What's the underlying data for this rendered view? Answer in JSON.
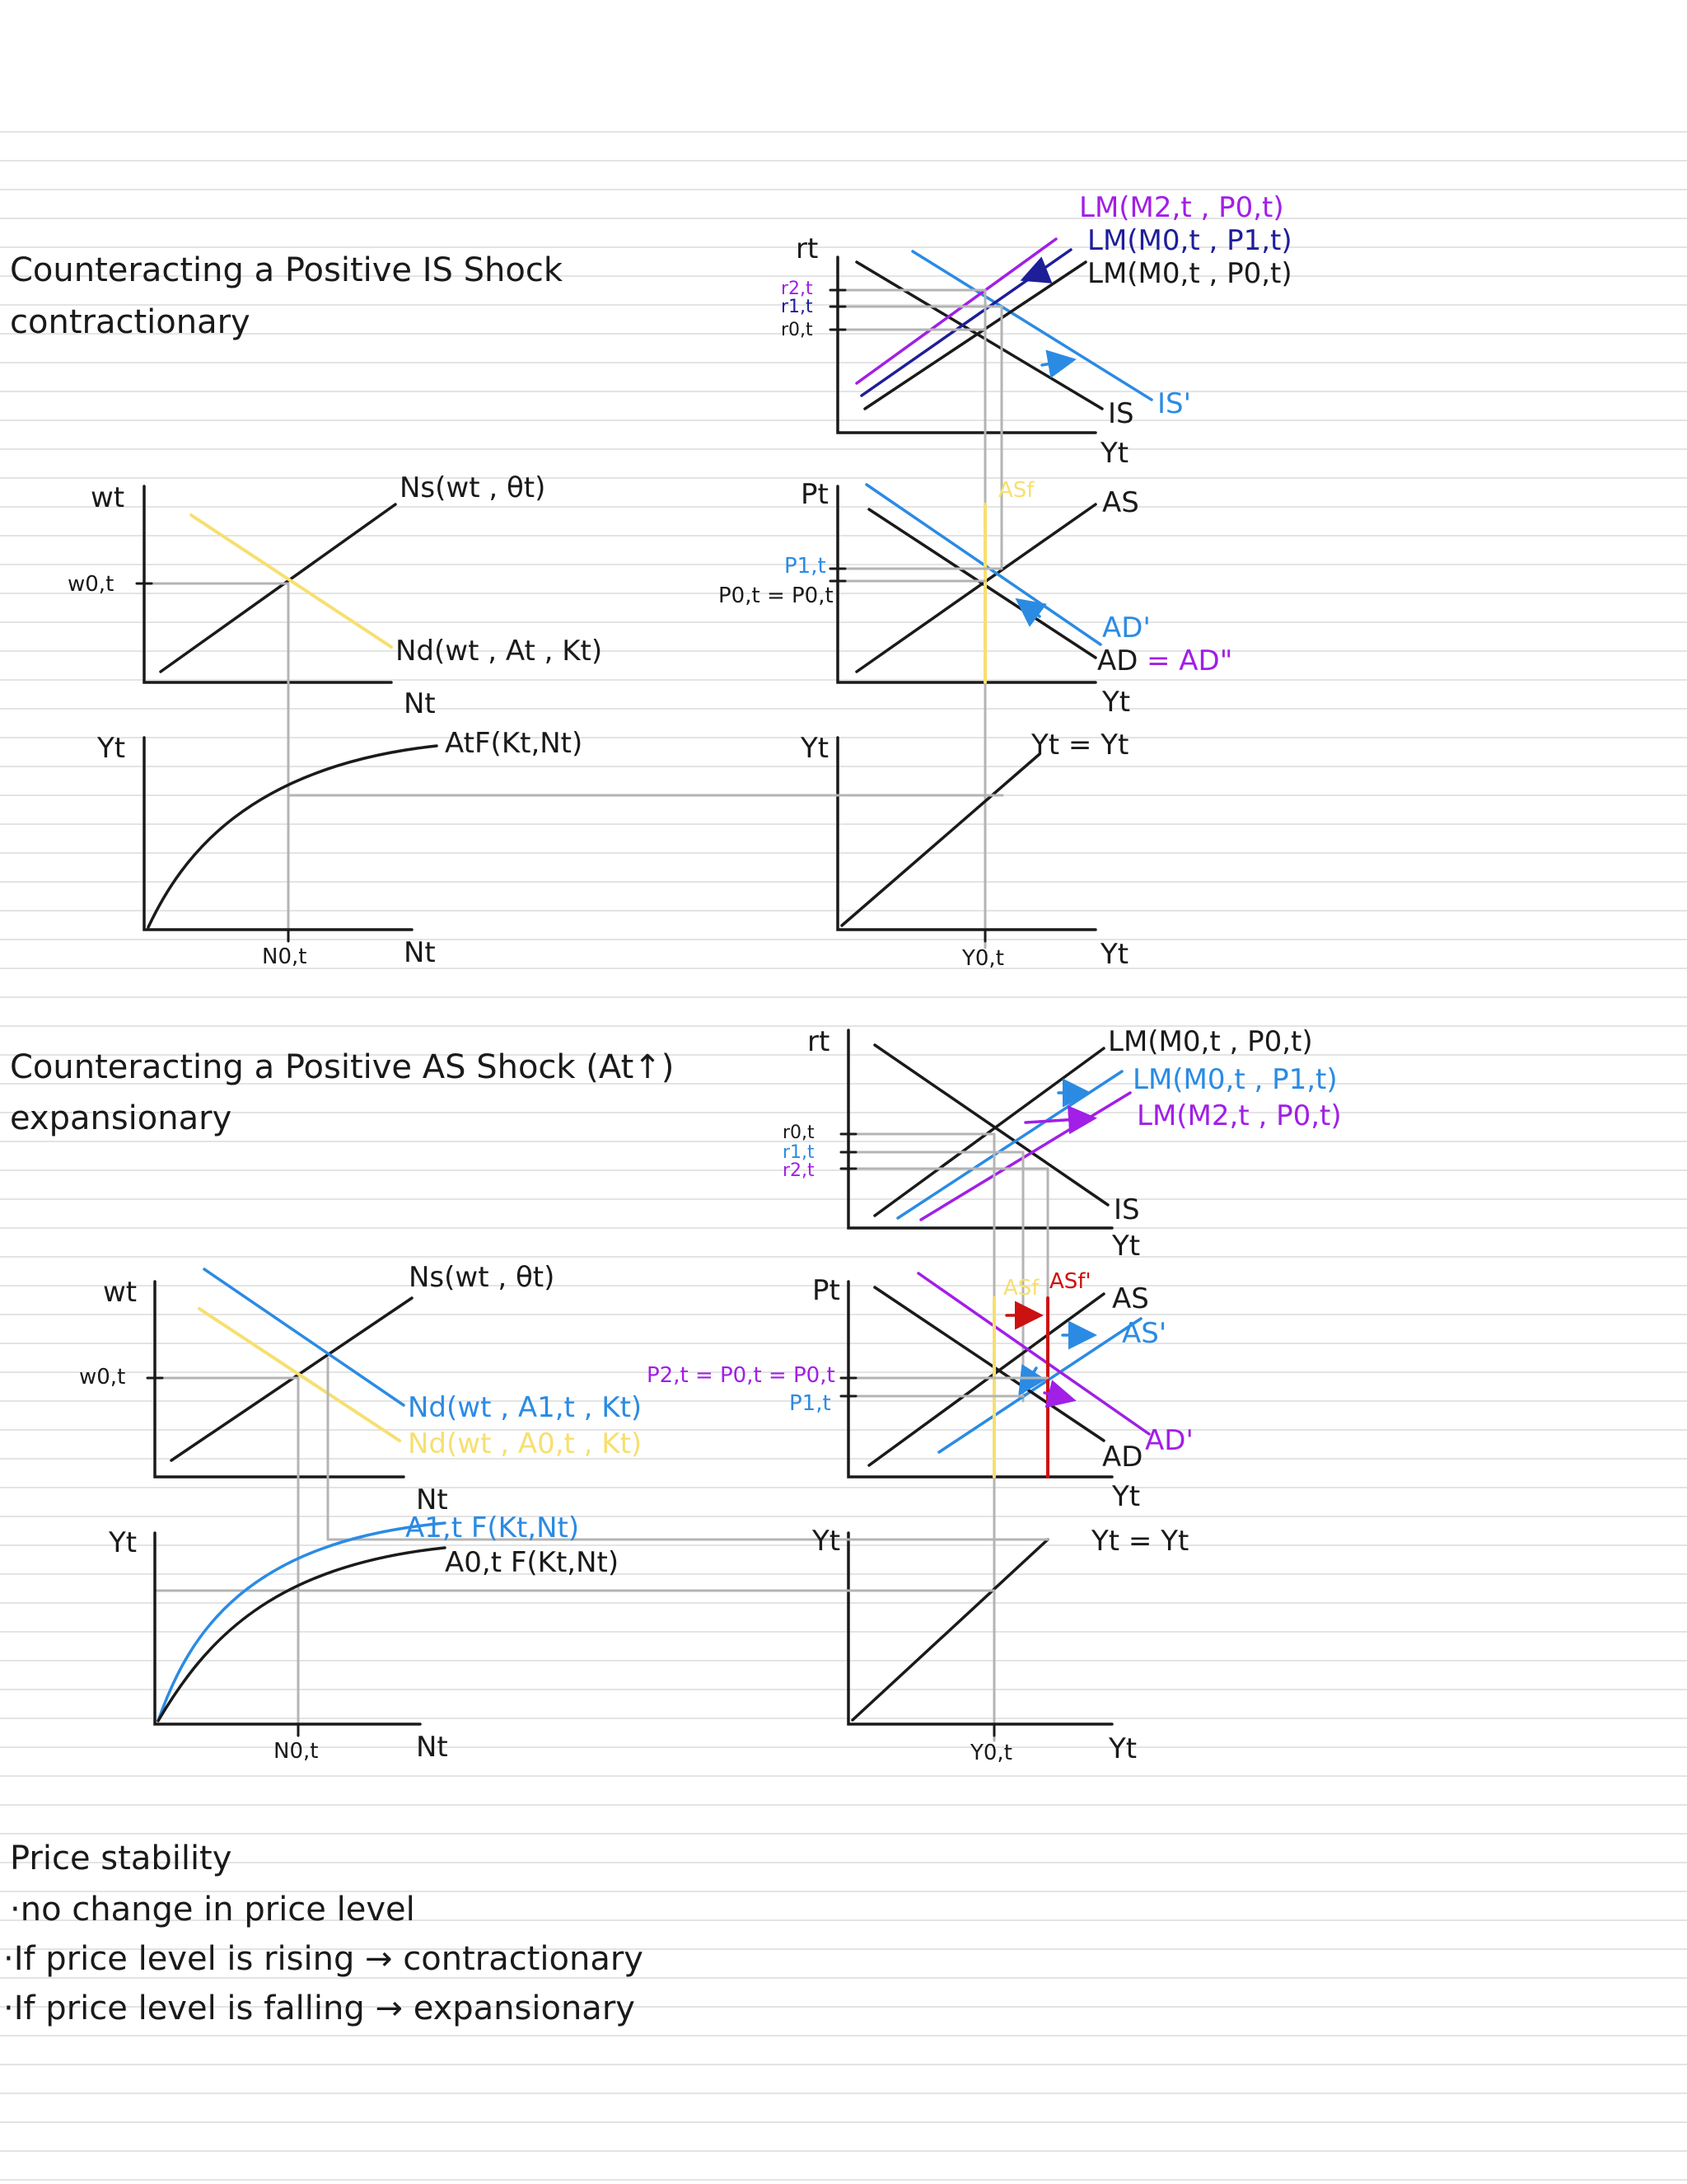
{
  "colors": {
    "black": "#1a1a1a",
    "gray": "#b4b4b4",
    "yellow": "#f7df70",
    "blue": "#2b8be3",
    "purple": "#a11fe6",
    "navy": "#1e1e99",
    "red": "#cc1111",
    "rule": "#e4e4e4"
  },
  "section1": {
    "title": "Counteracting a Positive IS Shock",
    "subtitle": "contractionary",
    "is_lm": {
      "y_axis": "rt",
      "x_axis": "Yt",
      "ticks": [
        "r2,t",
        "r1,t",
        "r0,t"
      ],
      "curves": {
        "lm2": "LM(M2,t , P0,t)",
        "lm1": "LM(M0,t , P1,t)",
        "lm0": "LM(M0,t , P0,t)",
        "is": "IS",
        "is_shift": "IS'"
      }
    },
    "ad_as": {
      "y_axis": "Pt",
      "x_axis": "Yt",
      "ticks": [
        "P1,t",
        "P0,t = P0,t"
      ],
      "curves": {
        "asf": "ASf",
        "as": "AS",
        "ad_shift": "AD'",
        "ad": "AD",
        "ad_eq": "= AD\""
      }
    },
    "output": {
      "y_axis": "Yt",
      "x_axis": "Yt",
      "x_tick": "Y0,t",
      "line": "Yt = Yt"
    },
    "labor": {
      "y_axis": "wt",
      "x_axis": "Nt",
      "y_tick": "w0,t",
      "ns": "Ns(wt , θt)",
      "nd": "Nd(wt , At , Kt)"
    },
    "production": {
      "y_axis": "Yt",
      "x_axis": "Nt",
      "x_tick": "N0,t",
      "curve": "AtF(Kt,Nt)"
    }
  },
  "section2": {
    "title": "Counteracting a Positive AS Shock (At↑)",
    "subtitle": "expansionary",
    "is_lm": {
      "y_axis": "rt",
      "x_axis": "Yt",
      "ticks": [
        "r0,t",
        "r1,t",
        "r2,t"
      ],
      "curves": {
        "lm0": "LM(M0,t , P0,t)",
        "lm1": "LM(M0,t , P1,t)",
        "lm2": "LM(M2,t , P0,t)",
        "is": "IS"
      }
    },
    "ad_as": {
      "y_axis": "Pt",
      "x_axis": "Yt",
      "ticks": [
        "P2,t = P0,t = P0,t",
        "P1,t"
      ],
      "curves": {
        "asf": "ASf",
        "asf_shift": "ASf'",
        "as": "AS",
        "as_shift": "AS'",
        "ad": "AD",
        "ad_shift": "AD'"
      }
    },
    "output": {
      "y_axis": "Yt",
      "x_axis": "Yt",
      "x_tick": "Y0,t",
      "line": "Yt = Yt"
    },
    "labor": {
      "y_axis": "wt",
      "x_axis": "Nt",
      "y_tick": "w0,t",
      "ns": "Ns(wt , θt)",
      "nd_new": "Nd(wt , A1,t , Kt)",
      "nd_old": "Nd(wt , A0,t , Kt)"
    },
    "production": {
      "y_axis": "Yt",
      "x_axis": "Nt",
      "x_tick": "N0,t",
      "curve_new": "A1,t F(Kt,Nt)",
      "curve_old": "A0,t F(Kt,Nt)"
    }
  },
  "notes": {
    "title": "Price stability",
    "items": [
      "·no change in price level",
      "·If price level is rising → contractionary",
      "·If price level is falling → expansionary"
    ]
  }
}
